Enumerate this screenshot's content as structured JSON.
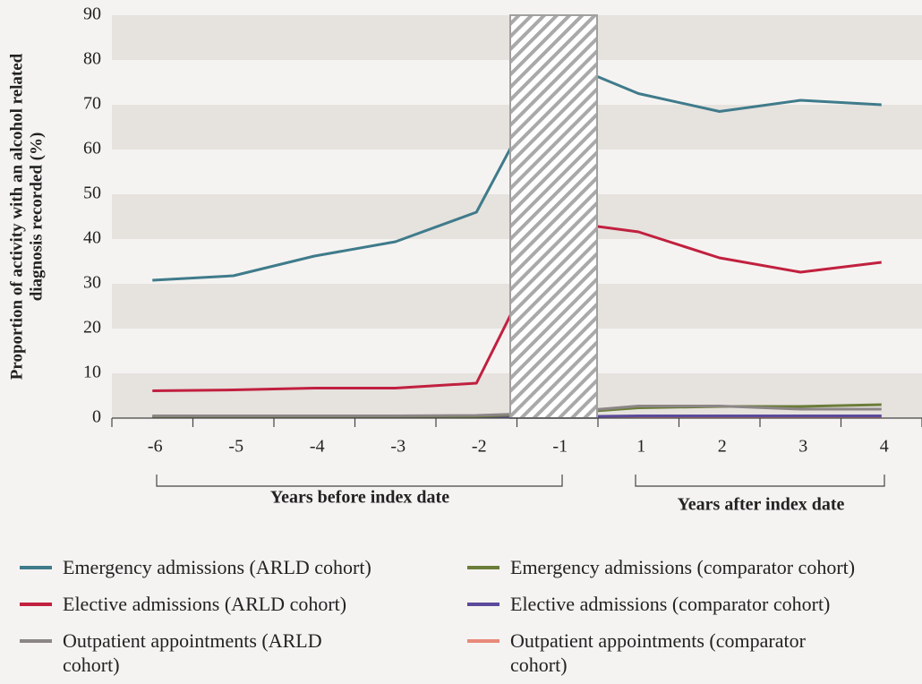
{
  "chart_data": {
    "type": "line",
    "y_label": [
      "Proportion of activity with an alcohol related",
      "diagnosis recorded (%)"
    ],
    "group_labels": [
      "Years before index date",
      "Years after index date"
    ],
    "categories": [
      "-6",
      "-5",
      "-4",
      "-3",
      "-2",
      "-1",
      "1",
      "2",
      "3",
      "4"
    ],
    "series": [
      {
        "name": "Emergency admissions (ARLD cohort)",
        "color": "#3f7b8b",
        "values": [
          30.8,
          31.8,
          36.2,
          39.4,
          46,
          80,
          72.5,
          68.5,
          71,
          70
        ]
      },
      {
        "name": "Elective admissions (ARLD cohort)",
        "color": "#c1203f",
        "values": [
          6.1,
          6.3,
          6.7,
          6.7,
          7.8,
          44,
          41.6,
          35.8,
          32.6,
          34.8
        ]
      },
      {
        "name": "Outpatient appointments (ARLD cohort)",
        "color": "#8c8686",
        "values": [
          0.5,
          0.5,
          0.5,
          0.5,
          0.6,
          1.2,
          2.7,
          2.7,
          2,
          2
        ]
      },
      {
        "name": "Emergency admissions (comparator cohort)",
        "color": "#6b7d3a",
        "values": [
          0.3,
          0.3,
          0.3,
          0.3,
          0.4,
          1,
          2.3,
          2.6,
          2.6,
          3
        ]
      },
      {
        "name": "Elective admissions (comparator cohort)",
        "color": "#5b4a9b",
        "values": [
          0.2,
          0.2,
          0.2,
          0.2,
          0.2,
          0.3,
          0.5,
          0.5,
          0.5,
          0.5
        ]
      },
      {
        "name": "Outpatient appointments (comparator cohort)",
        "color": "#e8897a",
        "values": [
          0.3,
          0.3,
          0.3,
          0.3,
          0.3,
          0.4,
          0.4,
          0.4,
          0.4,
          0.4
        ]
      }
    ],
    "ylim": [
      0,
      90
    ],
    "yticks": [
      0,
      10,
      20,
      30,
      40,
      50,
      60,
      70,
      80,
      90
    ],
    "banded_grid": true
  }
}
